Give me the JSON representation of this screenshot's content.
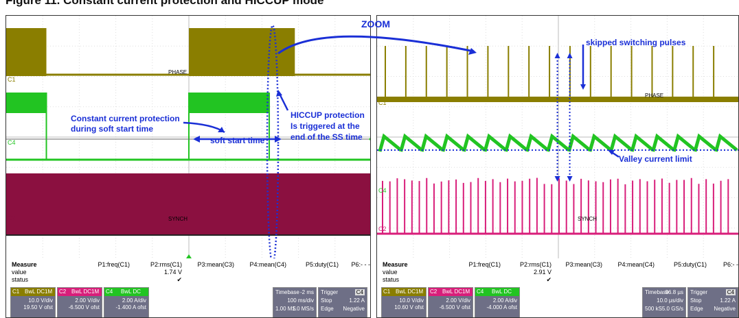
{
  "caption": "Figure 11. Constant current protection and HICCUP mode",
  "colors": {
    "c1": "#8a7e00",
    "c2": "#8b1040",
    "c4": "#22c422",
    "c2_zoom": "#d81e7a",
    "annotation": "#1a2fd6"
  },
  "annotations": {
    "zoom": "ZOOM",
    "constant_current_1": "Constant current protection",
    "constant_current_2": "during soft start time",
    "hiccup_1": "HICCUP protection",
    "hiccup_2": "Is triggered at the",
    "hiccup_3": "end of the SS time",
    "soft_start": "soft start time",
    "skipped": "skipped switching pulses",
    "valley": "Valley current limit"
  },
  "trace_labels": {
    "phase": "PHASE",
    "synch": "SYNCH",
    "c1": "C1",
    "c2": "C2",
    "c4": "C4"
  },
  "left_panel": {
    "measure": {
      "title": "Measure",
      "headers": [
        "P1:freq(C1)",
        "P2:rms(C1)",
        "P3:mean(C3)",
        "P4:mean(C4)",
        "P5:duty(C1)",
        "P6:- - -"
      ],
      "value_label": "value",
      "status_label": "status",
      "values": [
        "",
        "1.74 V",
        "",
        "",
        "",
        ""
      ],
      "status": [
        "",
        "✔",
        "",
        "",
        "",
        ""
      ]
    },
    "channels": [
      {
        "id": "C1",
        "tag": "BwL DC1M",
        "vdiv": "10.0 V/div",
        "ofst": "19.50 V ofst"
      },
      {
        "id": "C2",
        "tag": "BwL DC1M",
        "vdiv": "2.00 V/div",
        "ofst": "-6.500 V ofst"
      },
      {
        "id": "C4",
        "tag": "BwL DC",
        "vdiv": "2.00 A/div",
        "ofst": "-1.400 A ofst"
      }
    ],
    "timebase": {
      "label": "Timebase",
      "delay": "-2 ms",
      "div": "100 ms/div",
      "samples": "1.00 MS",
      "rate": "1.0 MS/s"
    },
    "trigger": {
      "label": "Trigger",
      "src": "C4",
      "mode": "Stop",
      "level": "1.22 A",
      "type": "Edge",
      "slope": "Negative"
    }
  },
  "right_panel": {
    "measure": {
      "title": "Measure",
      "headers": [
        "P1:freq(C1)",
        "P2:rms(C1)",
        "P3:mean(C3)",
        "P4:mean(C4)",
        "P5:duty(C1)",
        "P6:- -"
      ],
      "value_label": "value",
      "status_label": "status",
      "values": [
        "",
        "2.91 V",
        "",
        "",
        "",
        ""
      ],
      "status": [
        "",
        "✔",
        "",
        "",
        "",
        ""
      ]
    },
    "channels": [
      {
        "id": "C1",
        "tag": "BwL DC1M",
        "vdiv": "10.0 V/div",
        "ofst": "10.60 V ofst"
      },
      {
        "id": "C2",
        "tag": "BwL DC1M",
        "vdiv": "2.00 V/div",
        "ofst": "-6.500 V ofst"
      },
      {
        "id": "C4",
        "tag": "BwL DC",
        "vdiv": "2.00 A/div",
        "ofst": "-4.000 A ofst"
      }
    ],
    "timebase": {
      "label": "Timebase",
      "delay": "96.8 µs",
      "div": "10.0 µs/div",
      "samples": "500 kS",
      "rate": "5.0 GS/s"
    },
    "trigger": {
      "label": "Trigger",
      "src": "C4",
      "mode": "Stop",
      "level": "1.22 A",
      "type": "Edge",
      "slope": "Negative"
    }
  },
  "chart_data": [
    {
      "type": "line",
      "title": "",
      "xlabel": "",
      "ylabel": "",
      "grid": true,
      "divisions": {
        "x": 10,
        "y": 8
      },
      "series": [
        {
          "name": "C1",
          "note": "PHASE",
          "bursts_div": [
            [
              0.0,
              1.1
            ],
            [
              5.0,
              7.9
            ]
          ]
        },
        {
          "name": "C4",
          "soft_start_div": [
            [
              1.1,
              5.0
            ]
          ],
          "high_div": [
            [
              0.0,
              1.1
            ],
            [
              5.0,
              7.2
            ]
          ]
        },
        {
          "name": "C2",
          "note": "SYNCH"
        }
      ]
    },
    {
      "type": "line",
      "title": "",
      "xlabel": "",
      "ylabel": "",
      "grid": true,
      "divisions": {
        "x": 10,
        "y": 8
      },
      "series": [
        {
          "name": "C1",
          "note": "PHASE",
          "pulses": 17,
          "skipped_at_div": 5.2
        },
        {
          "name": "C4",
          "sawtooth_periods": 17
        },
        {
          "name": "C2",
          "note": "SYNCH",
          "pulses": 48
        }
      ]
    }
  ]
}
